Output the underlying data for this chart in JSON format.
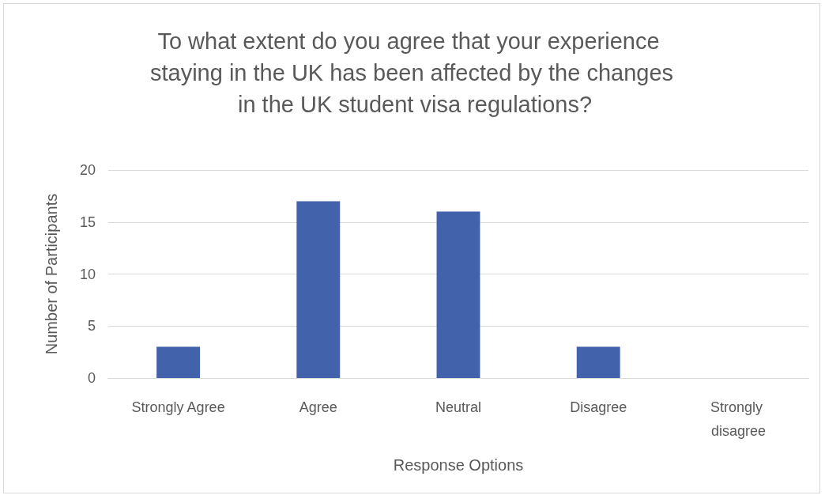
{
  "chart_data": {
    "type": "bar",
    "title": "To what extent do you agree that your experience staying in the UK has been affected by the changes in the UK student visa regulations?",
    "xlabel": "Response Options",
    "ylabel": "Number of Participants",
    "categories": [
      "Strongly Agree",
      "Agree",
      "Neutral",
      "Disagree",
      "Strongly disagree"
    ],
    "values": [
      3,
      17,
      16,
      3,
      0
    ],
    "color": "#4262ab",
    "ylim": [
      0,
      20
    ],
    "yticks": [
      0,
      5,
      10,
      15,
      20
    ],
    "grid": "y"
  }
}
